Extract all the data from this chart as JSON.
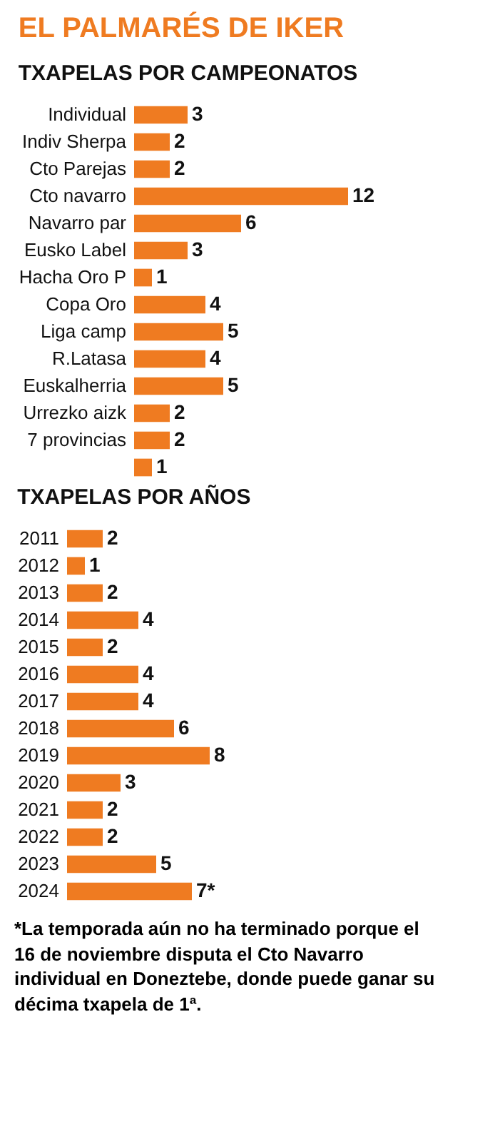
{
  "chart_data": [
    {
      "type": "bar",
      "orientation": "horizontal",
      "title": "EL PALMARÉS DE IKER",
      "subtitle": "TXAPELAS POR CAMPEONATOS",
      "categories": [
        "Individual",
        "Indiv Sherpa",
        "Cto Parejas",
        "Cto navarro",
        "Navarro par",
        "Eusko Label",
        "Hacha Oro P",
        "Copa Oro",
        "Liga camp",
        "R.Latasa",
        "Euskalherria",
        "Urrezko aizk",
        "7 provincias",
        null
      ],
      "values": [
        3,
        2,
        2,
        12,
        6,
        3,
        1,
        4,
        5,
        4,
        5,
        2,
        2,
        1
      ],
      "color": "#ef7b21",
      "data_labels": true
    },
    {
      "type": "bar",
      "orientation": "horizontal",
      "title": "TXAPELAS POR AÑOS",
      "categories": [
        "2011",
        "2012",
        "2013",
        "2014",
        "2015",
        "2016",
        "2017",
        "2018",
        "2019",
        "2020",
        "2021",
        "2022",
        "2023",
        "2024"
      ],
      "values": [
        2,
        1,
        2,
        4,
        2,
        4,
        4,
        6,
        8,
        3,
        2,
        2,
        5,
        7
      ],
      "value_labels": [
        "2",
        "1",
        "2",
        "4",
        "2",
        "4",
        "4",
        "6",
        "8",
        "3",
        "2",
        "2",
        "5",
        "7*"
      ],
      "color": "#ef7b21",
      "annotations": [
        "*La temporada aún no ha terminado porque el 16 de noviembre disputa el Cto Navarro individual en Doneztebe, donde puede ganar su décima txapela de 1ª."
      ]
    }
  ]
}
